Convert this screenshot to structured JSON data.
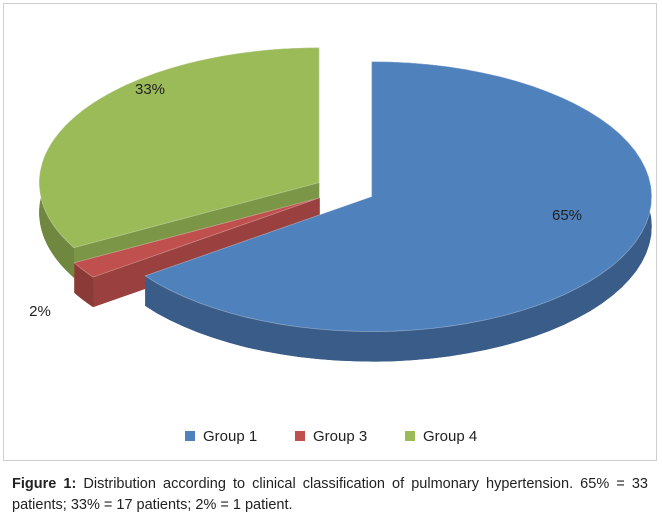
{
  "chart_data": {
    "type": "pie",
    "categories": [
      "Group 1",
      "Group 3",
      "Group 4"
    ],
    "values": [
      65,
      2,
      33
    ],
    "value_labels": [
      "65%",
      "2%",
      "33%"
    ],
    "series": [
      {
        "name": "Group 1",
        "color": "#4f81bd"
      },
      {
        "name": "Group 3",
        "color": "#c0504d"
      },
      {
        "name": "Group 4",
        "color": "#9bbb59"
      }
    ],
    "legend": "bottom"
  },
  "caption": {
    "label": "Figure 1:",
    "text": "Distribution according to clinical classification of pulmonary hypertension. 65% = 33 patients; 33% = 17 patients; 2% = 1 patient."
  }
}
